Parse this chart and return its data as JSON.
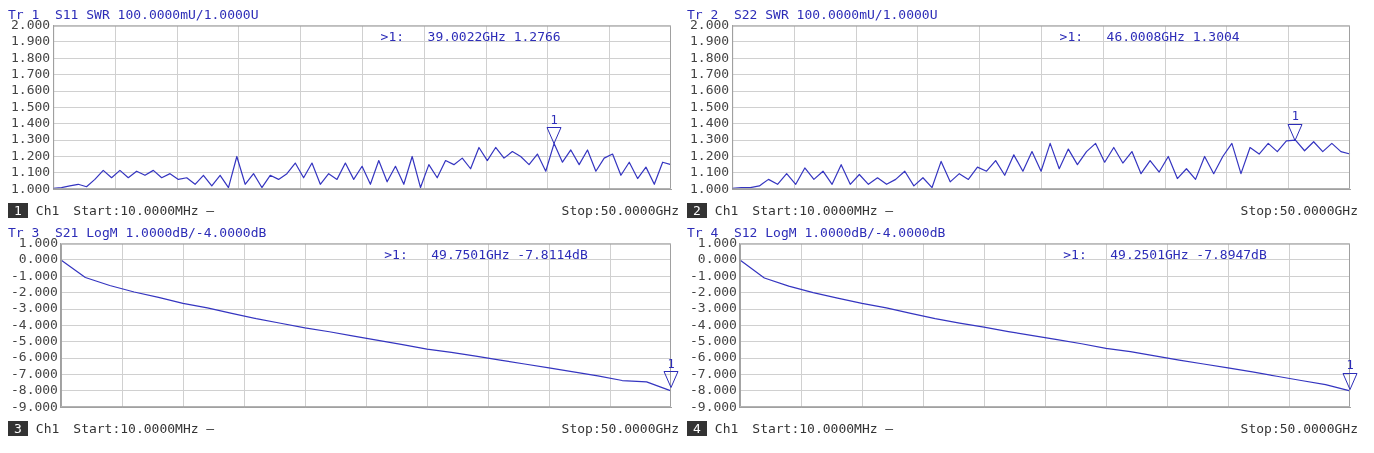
{
  "chart_data": [
    {
      "type": "line",
      "title": "Tr 1  S11 SWR 100.0000mU/1.0000U",
      "grid": true,
      "legend": false,
      "tick_labels": "y",
      "marker": "none",
      "line_style": "solid",
      "categories": [
        null,
        null,
        null,
        null,
        null,
        null,
        null,
        null,
        null,
        null,
        null,
        null,
        null,
        null,
        null,
        null,
        null,
        null,
        null,
        null,
        null,
        null,
        null,
        null,
        null,
        null,
        null,
        null,
        null,
        null,
        null,
        null,
        null,
        null,
        null,
        null,
        null,
        null,
        null,
        null,
        null,
        null,
        null,
        null,
        null,
        null,
        null,
        null,
        null,
        null,
        null,
        null,
        null,
        null,
        null,
        null,
        null,
        null,
        null,
        null,
        null,
        null,
        null,
        null,
        null,
        null,
        null,
        null,
        null,
        null,
        null,
        null,
        null,
        null,
        null
      ],
      "ylim": [
        1,
        2
      ],
      "yticks": [
        {
          "value": 1,
          "label": "1.000"
        },
        {
          "value": 1.1,
          "label": "1.100"
        },
        {
          "value": 1.2,
          "label": "1.200"
        },
        {
          "value": 1.3,
          "label": "1.300"
        },
        {
          "value": 1.4,
          "label": "1.400"
        },
        {
          "value": 1.5,
          "label": "1.500"
        },
        {
          "value": 1.6,
          "label": "1.600"
        },
        {
          "value": 1.7,
          "label": "1.700"
        },
        {
          "value": 1.8,
          "label": "1.800"
        },
        {
          "value": 1.9,
          "label": "1.900"
        },
        {
          "value": 2,
          "label": "2.000"
        }
      ],
      "annotations": [
        {
          "text": "1",
          "y": 1.2766
        },
        ">1:   39.0022GHz 1.2766",
        "1",
        "Ch1",
        "Start:10.0000MHz —",
        "Stop:50.0000GHz"
      ],
      "series": [
        {
          "color": "#3535c0",
          "values": [
            1.005,
            1.01,
            1.02,
            1.03,
            1.015,
            1.06,
            1.115,
            1.07,
            1.115,
            1.07,
            1.11,
            1.085,
            1.115,
            1.07,
            1.095,
            1.06,
            1.07,
            1.03,
            1.085,
            1.02,
            1.085,
            1.01,
            1.2,
            1.03,
            1.095,
            1.01,
            1.085,
            1.06,
            1.095,
            1.16,
            1.07,
            1.16,
            1.03,
            1.095,
            1.06,
            1.16,
            1.06,
            1.14,
            1.03,
            1.175,
            1.045,
            1.14,
            1.03,
            1.2,
            1.01,
            1.15,
            1.07,
            1.175,
            1.15,
            1.19,
            1.125,
            1.255,
            1.175,
            1.255,
            1.19,
            1.23,
            1.2,
            1.15,
            1.215,
            1.11,
            1.28,
            1.165,
            1.24,
            1.15,
            1.24,
            1.11,
            1.19,
            1.215,
            1.085,
            1.165,
            1.065,
            1.135,
            1.03,
            1.165,
            1.15
          ]
        }
      ]
    },
    {
      "type": "line",
      "title": "Tr 2  S22 SWR 100.0000mU/1.0000U",
      "grid": true,
      "legend": false,
      "tick_labels": "y",
      "marker": "none",
      "line_style": "solid",
      "categories": [
        null,
        null,
        null,
        null,
        null,
        null,
        null,
        null,
        null,
        null,
        null,
        null,
        null,
        null,
        null,
        null,
        null,
        null,
        null,
        null,
        null,
        null,
        null,
        null,
        null,
        null,
        null,
        null,
        null,
        null,
        null,
        null,
        null,
        null,
        null,
        null,
        null,
        null,
        null,
        null,
        null,
        null,
        null,
        null,
        null,
        null,
        null,
        null,
        null,
        null,
        null,
        null,
        null,
        null,
        null,
        null,
        null,
        null,
        null,
        null,
        null,
        null,
        null,
        null,
        null,
        null,
        null,
        null,
        null
      ],
      "ylim": [
        1,
        2
      ],
      "yticks": [
        {
          "value": 1,
          "label": "1.000"
        },
        {
          "value": 1.1,
          "label": "1.100"
        },
        {
          "value": 1.2,
          "label": "1.200"
        },
        {
          "value": 1.3,
          "label": "1.300"
        },
        {
          "value": 1.4,
          "label": "1.400"
        },
        {
          "value": 1.5,
          "label": "1.500"
        },
        {
          "value": 1.6,
          "label": "1.600"
        },
        {
          "value": 1.7,
          "label": "1.700"
        },
        {
          "value": 1.8,
          "label": "1.800"
        },
        {
          "value": 1.9,
          "label": "1.900"
        },
        {
          "value": 2,
          "label": "2.000"
        }
      ],
      "annotations": [
        {
          "text": "1",
          "y": 1.3004
        },
        ">1:   46.0008GHz 1.3004",
        "2",
        "Ch1",
        "Start:10.0000MHz —",
        "Stop:50.0000GHz"
      ],
      "series": [
        {
          "color": "#3535c0",
          "values": [
            1.005,
            1.01,
            1.01,
            1.02,
            1.06,
            1.03,
            1.095,
            1.03,
            1.13,
            1.06,
            1.11,
            1.03,
            1.15,
            1.03,
            1.09,
            1.03,
            1.07,
            1.03,
            1.06,
            1.11,
            1.02,
            1.07,
            1.01,
            1.17,
            1.045,
            1.095,
            1.06,
            1.135,
            1.11,
            1.175,
            1.085,
            1.21,
            1.11,
            1.23,
            1.11,
            1.28,
            1.125,
            1.245,
            1.15,
            1.23,
            1.28,
            1.165,
            1.255,
            1.16,
            1.23,
            1.095,
            1.175,
            1.105,
            1.2,
            1.065,
            1.125,
            1.06,
            1.2,
            1.095,
            1.2,
            1.28,
            1.095,
            1.255,
            1.215,
            1.28,
            1.23,
            1.295,
            1.3,
            1.235,
            1.29,
            1.23,
            1.28,
            1.23,
            1.215
          ]
        }
      ]
    },
    {
      "type": "line",
      "title": "Tr 3  S21 LogM 1.0000dB/-4.0000dB",
      "grid": true,
      "legend": false,
      "tick_labels": "y",
      "marker": "none",
      "line_style": "solid",
      "categories": [
        null,
        null,
        null,
        null,
        null,
        null,
        null,
        null,
        null,
        null,
        null,
        null,
        null,
        null,
        null,
        null,
        null,
        null,
        null,
        null,
        null,
        null,
        null,
        null,
        null,
        null
      ],
      "ylim": [
        -9,
        1
      ],
      "yticks": [
        {
          "value": -9,
          "label": "-9.000"
        },
        {
          "value": -8,
          "label": "-8.000"
        },
        {
          "value": -7,
          "label": "-7.000"
        },
        {
          "value": -6,
          "label": "-6.000"
        },
        {
          "value": -5,
          "label": "-5.000"
        },
        {
          "value": -4,
          "label": "-4.000"
        },
        {
          "value": -3,
          "label": "-3.000"
        },
        {
          "value": -2,
          "label": "-2.000"
        },
        {
          "value": -1,
          "label": "-1.000"
        },
        {
          "value": 0,
          "label": "0.000"
        },
        {
          "value": 1,
          "label": "1.000"
        }
      ],
      "annotations": [
        {
          "text": "1",
          "y": -7.8114
        },
        ">1:   49.7501GHz -7.8114dB",
        "3",
        "Ch1",
        "Start:10.0000MHz —",
        "Stop:50.0000GHz"
      ],
      "series": [
        {
          "color": "#3535c0",
          "values": [
            0,
            -1.07,
            -1.56,
            -1.96,
            -2.29,
            -2.65,
            -2.93,
            -3.27,
            -3.59,
            -3.87,
            -4.15,
            -4.39,
            -4.66,
            -4.92,
            -5.17,
            -5.45,
            -5.65,
            -5.88,
            -6.12,
            -6.36,
            -6.6,
            -6.84,
            -7.08,
            -7.37,
            -7.45,
            -8.0
          ]
        }
      ]
    },
    {
      "type": "line",
      "title": "Tr 4  S12 LogM 1.0000dB/-4.0000dB",
      "grid": true,
      "legend": false,
      "tick_labels": "y",
      "marker": "none",
      "line_style": "solid",
      "categories": [
        null,
        null,
        null,
        null,
        null,
        null,
        null,
        null,
        null,
        null,
        null,
        null,
        null,
        null,
        null,
        null,
        null,
        null,
        null,
        null,
        null,
        null,
        null,
        null,
        null,
        null
      ],
      "ylim": [
        -9,
        1
      ],
      "yticks": [
        {
          "value": -9,
          "label": "-9.000"
        },
        {
          "value": -8,
          "label": "-8.000"
        },
        {
          "value": -7,
          "label": "-7.000"
        },
        {
          "value": -6,
          "label": "-6.000"
        },
        {
          "value": -5,
          "label": "-5.000"
        },
        {
          "value": -4,
          "label": "-4.000"
        },
        {
          "value": -3,
          "label": "-3.000"
        },
        {
          "value": -2,
          "label": "-2.000"
        },
        {
          "value": -1,
          "label": "-1.000"
        },
        {
          "value": 0,
          "label": "0.000"
        },
        {
          "value": 1,
          "label": "1.000"
        }
      ],
      "annotations": [
        {
          "text": "1",
          "y": -7.8947
        },
        ">1:   49.2501GHz -7.8947dB",
        "4",
        "Ch1",
        "Start:10.0000MHz —",
        "Stop:50.0000GHz"
      ],
      "series": [
        {
          "color": "#3535c0",
          "values": [
            0,
            -1.1,
            -1.6,
            -2.0,
            -2.33,
            -2.65,
            -2.93,
            -3.27,
            -3.59,
            -3.86,
            -4.1,
            -4.38,
            -4.63,
            -4.87,
            -5.12,
            -5.4,
            -5.6,
            -5.86,
            -6.12,
            -6.36,
            -6.6,
            -6.84,
            -7.11,
            -7.37,
            -7.62,
            -8.0
          ]
        }
      ]
    }
  ]
}
